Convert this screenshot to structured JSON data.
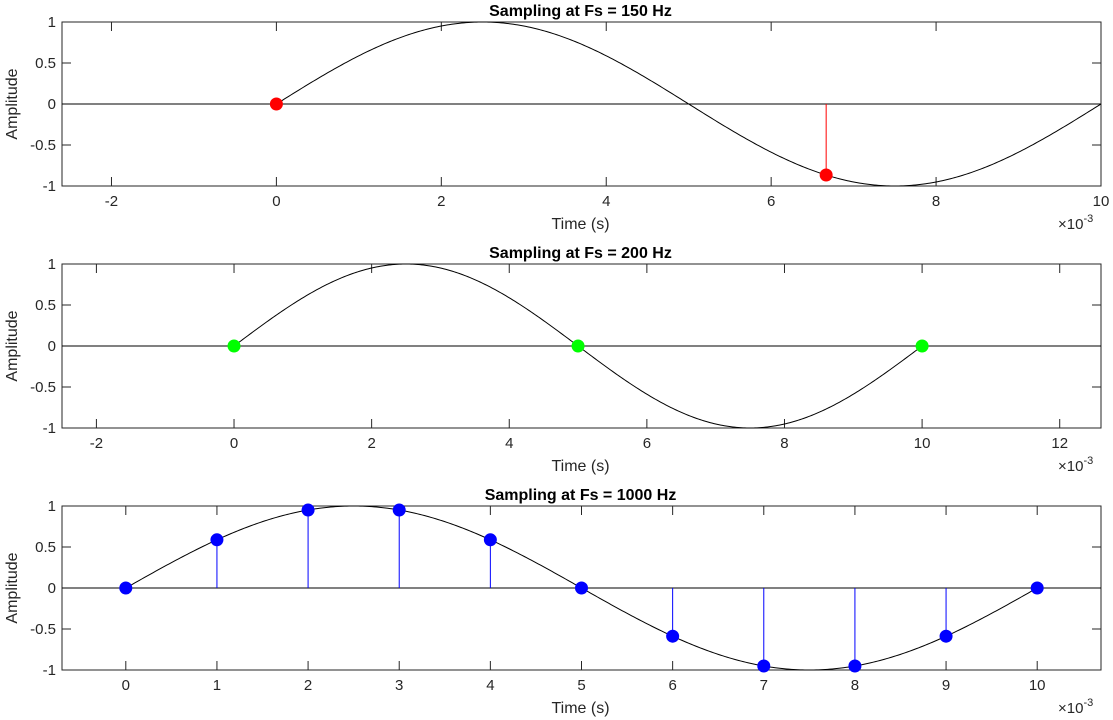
{
  "chart_data": [
    {
      "type": "line",
      "title": "Sampling at Fs = 150 Hz",
      "xlabel": "Time (s)",
      "ylabel": "Amplitude",
      "x_exponent_label": "×10",
      "x_exponent": "-3",
      "xlim": [
        -2.6,
        10
      ],
      "ylim": [
        -1,
        1
      ],
      "xticks": [
        -2,
        0,
        2,
        4,
        6,
        8,
        10
      ],
      "xticklabels": [
        "-2",
        "0",
        "2",
        "4",
        "6",
        "8",
        "10"
      ],
      "yticks": [
        1,
        0.5,
        0,
        -0.5,
        -1
      ],
      "yticklabels": [
        "1",
        "0.5",
        "0",
        "-0.5",
        "-1"
      ],
      "grid": false,
      "signal": {
        "frequency_hz": 100,
        "amplitude": 1,
        "t_start": 0,
        "t_end": 10,
        "color": "#000000"
      },
      "samples": {
        "x": [
          0,
          6.667
        ],
        "y": [
          0,
          -0.866
        ],
        "color": "#ff0000",
        "marker": "stem"
      }
    },
    {
      "type": "line",
      "title": "Sampling at Fs = 200 Hz",
      "xlabel": "Time (s)",
      "ylabel": "Amplitude",
      "x_exponent_label": "×10",
      "x_exponent": "-3",
      "xlim": [
        -2.5,
        12.6
      ],
      "ylim": [
        -1,
        1
      ],
      "xticks": [
        -2,
        0,
        2,
        4,
        6,
        8,
        10,
        12
      ],
      "xticklabels": [
        "-2",
        "0",
        "2",
        "4",
        "6",
        "8",
        "10",
        "12"
      ],
      "yticks": [
        1,
        0.5,
        0,
        -0.5,
        -1
      ],
      "yticklabels": [
        "1",
        "0.5",
        "0",
        "-0.5",
        "-1"
      ],
      "grid": false,
      "signal": {
        "frequency_hz": 100,
        "amplitude": 1,
        "t_start": 0,
        "t_end": 10,
        "color": "#000000"
      },
      "samples": {
        "x": [
          0,
          5,
          10
        ],
        "y": [
          0,
          0,
          0
        ],
        "color": "#00ff00",
        "marker": "stem"
      }
    },
    {
      "type": "line",
      "title": "Sampling at Fs = 1000 Hz",
      "xlabel": "Time (s)",
      "ylabel": "Amplitude",
      "x_exponent_label": "×10",
      "x_exponent": "-3",
      "xlim": [
        -0.7,
        10.7
      ],
      "ylim": [
        -1,
        1
      ],
      "xticks": [
        0,
        1,
        2,
        3,
        4,
        5,
        6,
        7,
        8,
        9,
        10
      ],
      "xticklabels": [
        "0",
        "1",
        "2",
        "3",
        "4",
        "5",
        "6",
        "7",
        "8",
        "9",
        "10"
      ],
      "yticks": [
        1,
        0.5,
        0,
        -0.5,
        -1
      ],
      "yticklabels": [
        "1",
        "0.5",
        "0",
        "-0.5",
        "-1"
      ],
      "grid": false,
      "signal": {
        "frequency_hz": 100,
        "amplitude": 1,
        "t_start": 0,
        "t_end": 10,
        "color": "#000000"
      },
      "samples": {
        "x": [
          0,
          1,
          2,
          3,
          4,
          5,
          6,
          7,
          8,
          9,
          10
        ],
        "y": [
          0,
          0.588,
          0.951,
          0.951,
          0.588,
          0,
          -0.588,
          -0.951,
          -0.951,
          -0.588,
          0
        ],
        "color": "#0000ff",
        "marker": "stem"
      }
    }
  ]
}
